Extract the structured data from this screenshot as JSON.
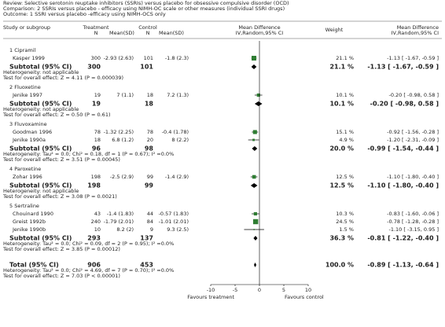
{
  "header": {
    "review": "Review:  Selective serotonin reuptake inhibitors (SSRIs) versus placebo for obsessive compulsive disorder (OCD)",
    "comparison": "Comparison:  2 SSRIs versus placebo - efficacy using NIMH-OC scale or other measures (individual SSRI drugs)",
    "outcome": "Outcome:  1 SSRI versus placebo -efficacy using NIMH-OCS only"
  },
  "chart_data": {
    "type": "forest",
    "columns": {
      "study": "Study or subgroup",
      "treatment": "Treatment",
      "treatment_n": "N",
      "treatment_mean_sd": "Mean(SD)",
      "control": "Control",
      "control_n": "N",
      "control_mean_sd": "Mean(SD)",
      "plot_title": "Mean Difference",
      "plot_method": "IV,Random,95% CI",
      "weight": "Weight",
      "md_title": "Mean Difference",
      "md_method": "IV,Random,95% CI"
    },
    "groups": [
      {
        "title": "1 Cipramil",
        "studies": [
          {
            "name": "Kasper 1999",
            "treatment_n": 300,
            "treatment_mean_sd": "-2.93 (2.63)",
            "control_n": 101,
            "control_mean_sd": "-1.8 (2.3)",
            "weight": 21.1,
            "weight_label": "21.1 %",
            "md": -1.13,
            "ci": [
              -1.67,
              -0.59
            ],
            "md_label": "-1.13 [ -1.67, -0.59 ]"
          }
        ],
        "subtotal": {
          "label": "Subtotal (95% CI)",
          "treatment_n": 300,
          "control_n": 101,
          "weight": 21.1,
          "weight_label": "21.1 %",
          "md": -1.13,
          "ci": [
            -1.67,
            -0.59
          ],
          "md_label": "-1.13 [ -1.67, -0.59 ]",
          "heterogeneity": "Heterogeneity: not applicable",
          "test": "Test for overall effect: Z = 4.11 (P = 0.000039)"
        }
      },
      {
        "title": "2 Fluoxetine",
        "studies": [
          {
            "name": "Jenike 1997",
            "treatment_n": 19,
            "treatment_mean_sd": "7 (1.1)",
            "control_n": 18,
            "control_mean_sd": "7.2 (1.3)",
            "weight": 10.1,
            "weight_label": "10.1 %",
            "md": -0.2,
            "ci": [
              -0.98,
              0.58
            ],
            "md_label": "-0.20 [ -0.98, 0.58 ]"
          }
        ],
        "subtotal": {
          "label": "Subtotal (95% CI)",
          "treatment_n": 19,
          "control_n": 18,
          "weight": 10.1,
          "weight_label": "10.1 %",
          "md": -0.2,
          "ci": [
            -0.98,
            0.58
          ],
          "md_label": "-0.20 [ -0.98, 0.58 ]",
          "heterogeneity": "Heterogeneity: not applicable",
          "test": "Test for overall effect: Z = 0.50 (P = 0.61)"
        }
      },
      {
        "title": "3 Fluvoxamine",
        "studies": [
          {
            "name": "Goodman 1996",
            "treatment_n": 78,
            "treatment_mean_sd": "-1.32 (2.25)",
            "control_n": 78,
            "control_mean_sd": "-0.4 (1.78)",
            "weight": 15.1,
            "weight_label": "15.1 %",
            "md": -0.92,
            "ci": [
              -1.56,
              -0.28
            ],
            "md_label": "-0.92 [ -1.56, -0.28 ]"
          },
          {
            "name": "Jenike 1990a",
            "treatment_n": 18,
            "treatment_mean_sd": "6.8 (1.2)",
            "control_n": 20,
            "control_mean_sd": "8 (2.2)",
            "weight": 4.9,
            "weight_label": "4.9 %",
            "md": -1.2,
            "ci": [
              -2.31,
              -0.09
            ],
            "md_label": "-1.20 [ -2.31, -0.09 ]"
          }
        ],
        "subtotal": {
          "label": "Subtotal (95% CI)",
          "treatment_n": 96,
          "control_n": 98,
          "weight": 20.0,
          "weight_label": "20.0 %",
          "md": -0.99,
          "ci": [
            -1.54,
            -0.44
          ],
          "md_label": "-0.99 [ -1.54, -0.44 ]",
          "heterogeneity": "Heterogeneity: Tau² = 0.0; Chi² = 0.18, df = 1 (P = 0.67); I² =0.0%",
          "test": "Test for overall effect: Z = 3.51 (P = 0.00045)"
        }
      },
      {
        "title": "4 Paroxetine",
        "studies": [
          {
            "name": "Zohar 1996",
            "treatment_n": 198,
            "treatment_mean_sd": "-2.5 (2.9)",
            "control_n": 99,
            "control_mean_sd": "-1.4 (2.9)",
            "weight": 12.5,
            "weight_label": "12.5 %",
            "md": -1.1,
            "ci": [
              -1.8,
              -0.4
            ],
            "md_label": "-1.10 [ -1.80, -0.40 ]"
          }
        ],
        "subtotal": {
          "label": "Subtotal (95% CI)",
          "treatment_n": 198,
          "control_n": 99,
          "weight": 12.5,
          "weight_label": "12.5 %",
          "md": -1.1,
          "ci": [
            -1.8,
            -0.4
          ],
          "md_label": "-1.10 [ -1.80, -0.40 ]",
          "heterogeneity": "Heterogeneity: not applicable",
          "test": "Test for overall effect: Z = 3.08 (P = 0.0021)"
        }
      },
      {
        "title": "5 Sertraline",
        "studies": [
          {
            "name": "Chouinard 1990",
            "treatment_n": 43,
            "treatment_mean_sd": "-1.4 (1.83)",
            "control_n": 44,
            "control_mean_sd": "-0.57 (1.83)",
            "weight": 10.3,
            "weight_label": "10.3 %",
            "md": -0.83,
            "ci": [
              -1.6,
              -0.06
            ],
            "md_label": "-0.83 [ -1.60, -0.06 ]"
          },
          {
            "name": "Greist 1992b",
            "treatment_n": 240,
            "treatment_mean_sd": "-1.79 (2.01)",
            "control_n": 84,
            "control_mean_sd": "-1.01 (2.01)",
            "weight": 24.5,
            "weight_label": "24.5 %",
            "md": -0.78,
            "ci": [
              -1.28,
              -0.28
            ],
            "md_label": "-0.78 [ -1.28, -0.28 ]"
          },
          {
            "name": "Jenike 1990b",
            "treatment_n": 10,
            "treatment_mean_sd": "8.2 (2)",
            "control_n": 9,
            "control_mean_sd": "9.3 (2.5)",
            "weight": 1.5,
            "weight_label": "1.5 %",
            "md": -1.1,
            "ci": [
              -3.15,
              0.95
            ],
            "md_label": "-1.10 [ -3.15, 0.95 ]"
          }
        ],
        "subtotal": {
          "label": "Subtotal (95% CI)",
          "treatment_n": 293,
          "control_n": 137,
          "weight": 36.3,
          "weight_label": "36.3 %",
          "md": -0.81,
          "ci": [
            -1.22,
            -0.4
          ],
          "md_label": "-0.81 [ -1.22, -0.40 ]",
          "heterogeneity": "Heterogeneity: Tau² = 0.0; Chi² = 0.09, df = 2 (P = 0.95); I² =0.0%",
          "test": "Test for overall effect: Z = 3.85 (P = 0.00012)"
        }
      }
    ],
    "total": {
      "label": "Total (95% CI)",
      "treatment_n": 906,
      "control_n": 453,
      "weight": 100.0,
      "weight_label": "100.0 %",
      "md": -0.89,
      "ci": [
        -1.13,
        -0.64
      ],
      "md_label": "-0.89 [ -1.13, -0.64 ]",
      "heterogeneity": "Heterogeneity: Tau² = 0.0; Chi² = 4.69, df = 7 (P = 0.70); I² =0.0%",
      "test": "Test for overall effect: Z = 7.03 (P < 0.00001)"
    },
    "xlim": [
      -10,
      10
    ],
    "xticks": [
      -10,
      -5,
      0,
      5,
      10
    ],
    "x_left_label": "Favours treatment",
    "x_right_label": "Favours control",
    "square_color": "#2e7d32"
  }
}
